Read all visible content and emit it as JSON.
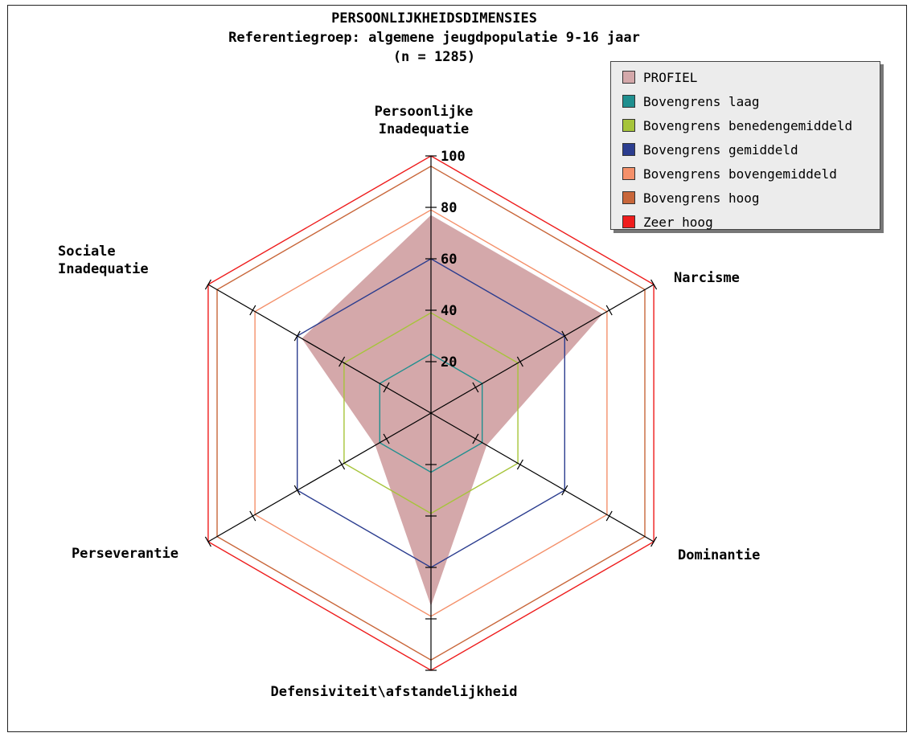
{
  "chart_data": {
    "type": "radar",
    "title_lines": [
      "PERSOONLIJKHEIDSDIMENSIES",
      "Referentiegroep: algemene jeugdpopulatie 9-16 jaar",
      "(n = 1285)"
    ],
    "axes": [
      {
        "label_lines": [
          "Persoonlijke",
          "Inadequatie"
        ]
      },
      {
        "label_lines": [
          "Narcisme"
        ]
      },
      {
        "label_lines": [
          "Dominantie"
        ]
      },
      {
        "label_lines": [
          "Defensiviteit\\afstandelijkheid"
        ]
      },
      {
        "label_lines": [
          "Perseverantie"
        ]
      },
      {
        "label_lines": [
          "Sociale",
          "Inadequatie"
        ]
      }
    ],
    "scale": {
      "min": 0,
      "max": 100,
      "tick_step": 20
    },
    "tick_labels": [
      "20",
      "40",
      "60",
      "80",
      "100"
    ],
    "grid": false,
    "legend_position": "top-right",
    "series": [
      {
        "name": "PROFIEL",
        "type": "filled",
        "color": "#d4a8aa",
        "values": [
          77,
          77,
          25,
          75,
          25,
          58
        ]
      },
      {
        "name": "Bovengrens laag",
        "type": "line",
        "color": "#1f8f8f",
        "values": [
          23,
          23,
          23,
          23,
          23,
          23
        ]
      },
      {
        "name": "Bovengrens benedengemiddeld",
        "type": "line",
        "color": "#a6c43a",
        "values": [
          39,
          39,
          39,
          39,
          39,
          39
        ]
      },
      {
        "name": "Bovengrens gemiddeld",
        "type": "line",
        "color": "#2b3d8f",
        "values": [
          60,
          60,
          60,
          60,
          60,
          60
        ]
      },
      {
        "name": "Bovengrens bovengemiddeld",
        "type": "line",
        "color": "#f4906a",
        "values": [
          79,
          79,
          79,
          79,
          79,
          79
        ]
      },
      {
        "name": "Bovengrens hoog",
        "type": "line",
        "color": "#c8663a",
        "values": [
          96,
          96,
          96,
          96,
          96,
          96
        ]
      },
      {
        "name": "Zeer hoog",
        "type": "line",
        "color": "#ee1c1c",
        "values": [
          100,
          100,
          100,
          100,
          100,
          100
        ]
      }
    ]
  }
}
